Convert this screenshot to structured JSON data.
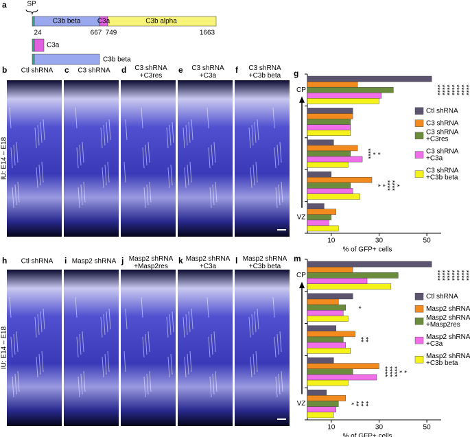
{
  "panel_a": {
    "letter": "a",
    "sp": "SP",
    "segments": [
      "C3b beta",
      "C3a",
      "C3b alpha"
    ],
    "positions": [
      "24",
      "667",
      "749",
      "1663"
    ],
    "constructs": [
      "C3a",
      "C3b beta"
    ]
  },
  "rows": [
    {
      "side_label": "IU: E14 – E18",
      "panels": [
        {
          "letter": "b",
          "title": [
            "Ctl shRNA"
          ]
        },
        {
          "letter": "c",
          "title": [
            "C3 shRNA"
          ]
        },
        {
          "letter": "d",
          "title": [
            "C3 shRNA",
            "+C3res"
          ]
        },
        {
          "letter": "e",
          "title": [
            "C3 shRNA",
            "+C3a"
          ]
        },
        {
          "letter": "f",
          "title": [
            "C3 shRNA",
            "+C3b beta"
          ]
        }
      ]
    },
    {
      "side_label": "IU: E14 – E18",
      "panels": [
        {
          "letter": "h",
          "title": [
            "Ctl shRNA"
          ]
        },
        {
          "letter": "i",
          "title": [
            "Masp2 shRNA"
          ]
        },
        {
          "letter": "j",
          "title": [
            "Masp2 shRNA",
            "+Masp2res"
          ]
        },
        {
          "letter": "k",
          "title": [
            "Masp2 shRNA",
            "+C3a"
          ]
        },
        {
          "letter": "l",
          "title": [
            "Masp2 shRNA",
            "+C3b beta"
          ]
        }
      ]
    }
  ],
  "chart_data": [
    {
      "type": "bar",
      "label": "g",
      "categories": [
        "CP",
        null,
        null,
        null,
        "VZ"
      ],
      "series": [
        {
          "name": "Ctl shRNA",
          "color": "#5d5570",
          "values": [
            52,
            19,
            11,
            10,
            7
          ]
        },
        {
          "name": "C3 shRNA",
          "color": "#f28a1e",
          "values": [
            21,
            19,
            21,
            27,
            12
          ]
        },
        {
          "name": "C3 shRNA +C3res",
          "color": "#6b8b3d",
          "values": [
            36,
            18,
            18,
            18,
            10
          ]
        },
        {
          "name": "C3 shRNA +C3a",
          "color": "#f06ee8",
          "values": [
            31,
            18,
            23,
            19,
            9
          ]
        },
        {
          "name": "C3 shRNA +C3b beta",
          "color": "#f4f218",
          "values": [
            30,
            18,
            17,
            22,
            13
          ]
        }
      ],
      "xlim": [
        0,
        56
      ],
      "xticks": [
        10,
        30,
        50
      ],
      "xlabel": "% of GFP+ cells",
      "annotations": [
        [
          {
            "text": "****",
            "color": "#f28a1e"
          },
          {
            "text": "****",
            "color": "#f28a1e"
          },
          {
            "text": "****",
            "color": "#f28a1e"
          },
          {
            "text": "****",
            "color": "#5d5570"
          },
          {
            "text": "****",
            "color": "#5d5570"
          },
          {
            "text": "****",
            "color": "#5d5570"
          },
          {
            "text": "****",
            "color": "#5d5570"
          }
        ],
        [],
        [
          {
            "text": "****",
            "color": "#5d5570"
          },
          {
            "text": "*",
            "color": "#5d5570"
          },
          {
            "text": "*",
            "color": "#5d5570"
          }
        ],
        [
          {
            "text": "*",
            "color": "#f28a1e"
          },
          {
            "text": "*",
            "color": "#f28a1e"
          },
          {
            "text": "****",
            "color": "#5d5570"
          },
          {
            "text": "****",
            "color": "#5d5570"
          },
          {
            "text": "*",
            "color": "#5d5570"
          }
        ],
        []
      ]
    },
    {
      "type": "bar",
      "label": "m",
      "categories": [
        "CP",
        null,
        null,
        null,
        "VZ"
      ],
      "series": [
        {
          "name": "Ctl shRNA",
          "color": "#5d5570",
          "values": [
            52,
            19,
            12,
            11,
            8
          ]
        },
        {
          "name": "Masp2 shRNA",
          "color": "#f28a1e",
          "values": [
            19,
            13,
            20,
            30,
            16
          ]
        },
        {
          "name": "Masp2 shRNA +Masp2res",
          "color": "#6b8b3d",
          "values": [
            38,
            16,
            15,
            19,
            13
          ]
        },
        {
          "name": "Masp2 shRNA +C3a",
          "color": "#f06ee8",
          "values": [
            25,
            15,
            16,
            29,
            12
          ]
        },
        {
          "name": "Masp2 shRNA +C3b beta",
          "color": "#f4f218",
          "values": [
            35,
            17,
            18,
            17,
            11
          ]
        }
      ],
      "xlim": [
        0,
        56
      ],
      "xticks": [
        10,
        30,
        50
      ],
      "xlabel": "% of GFP+ cells",
      "annotations": [
        [
          {
            "text": "****",
            "color": "#f28a1e"
          },
          {
            "text": "****",
            "color": "#f28a1e"
          },
          {
            "text": "****",
            "color": "#f28a1e"
          },
          {
            "text": "****",
            "color": "#5d5570"
          },
          {
            "text": "****",
            "color": "#5d5570"
          },
          {
            "text": "****",
            "color": "#5d5570"
          },
          {
            "text": "****",
            "color": "#5d5570"
          }
        ],
        [
          {
            "text": "*",
            "color": "#5d5570"
          }
        ],
        [
          {
            "text": "**",
            "color": "#5d5570"
          },
          {
            "text": "**",
            "color": "#5d5570"
          }
        ],
        [
          {
            "text": "****",
            "color": "#f28a1e"
          },
          {
            "text": "****",
            "color": "#f28a1e"
          },
          {
            "text": "****",
            "color": "#5d5570"
          },
          {
            "text": "*",
            "color": "#5d5570"
          },
          {
            "text": "*",
            "color": "#5d5570"
          }
        ],
        [
          {
            "text": "*",
            "color": "#f28a1e"
          },
          {
            "text": "**",
            "color": "#f28a1e"
          },
          {
            "text": "**",
            "color": "#5d5570"
          },
          {
            "text": "**",
            "color": "#5d5570"
          }
        ]
      ]
    }
  ]
}
